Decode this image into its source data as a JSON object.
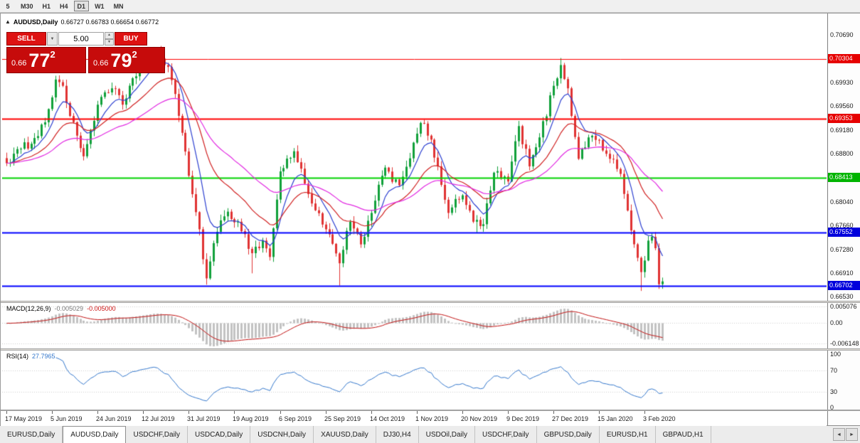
{
  "toolbar": {
    "timeframes": [
      {
        "label": "5",
        "active": false
      },
      {
        "label": "M30",
        "active": false
      },
      {
        "label": "H1",
        "active": false
      },
      {
        "label": "H4",
        "active": false
      },
      {
        "label": "D1",
        "active": true
      },
      {
        "label": "W1",
        "active": false
      },
      {
        "label": "MN",
        "active": false
      }
    ]
  },
  "chart_window": {
    "panel_toggle_icon": "▲",
    "symbol_title": "AUDUSD,Daily",
    "ohlc": "0.66727 0.66783 0.66654 0.66772",
    "trade_panel": {
      "sell_label": "SELL",
      "buy_label": "BUY",
      "lot_value": "5.00",
      "dropdown_icon": "▼",
      "spinner_up_icon": "▲",
      "spinner_down_icon": "▼",
      "bid": {
        "prefix": "0.66",
        "big": "77",
        "sup": "2"
      },
      "ask": {
        "prefix": "0.66",
        "big": "79",
        "sup": "2"
      }
    },
    "price_axis": {
      "labels": [
        {
          "text": "0.70690",
          "value": 0.7069
        },
        {
          "text": "0.69930",
          "value": 0.6993
        },
        {
          "text": "0.69560",
          "value": 0.6956
        },
        {
          "text": "0.69180",
          "value": 0.6918
        },
        {
          "text": "0.68800",
          "value": 0.688
        },
        {
          "text": "0.68410",
          "value": 0.6841
        },
        {
          "text": "0.68040",
          "value": 0.6804
        },
        {
          "text": "0.67660",
          "value": 0.6766
        },
        {
          "text": "0.67280",
          "value": 0.6728
        },
        {
          "text": "0.66910",
          "value": 0.6691
        },
        {
          "text": "0.66530",
          "value": 0.6653
        }
      ],
      "tags": [
        {
          "text": "0.70304",
          "price": 0.70304,
          "bg": "#e60000"
        },
        {
          "text": "0.69353",
          "price": 0.69353,
          "bg": "#e60000"
        },
        {
          "text": "0.68413",
          "price": 0.68413,
          "bg": "#00b400"
        },
        {
          "text": "0.67552",
          "price": 0.67552,
          "bg": "#0000dc"
        },
        {
          "text": "0.66702",
          "price": 0.66702,
          "bg": "#0000dc"
        }
      ]
    },
    "macd_panel": {
      "label": "MACD(12,26,9)",
      "value_main": "-0.005029",
      "value_signal": "-0.005000",
      "axis": [
        {
          "text": "0.005076",
          "value": 0.005076
        },
        {
          "text": "0.00",
          "value": 0
        },
        {
          "text": "-0.006148",
          "value": -0.006148
        }
      ]
    },
    "rsi_panel": {
      "label": "RSI(14)",
      "value": "27.7965",
      "axis": [
        {
          "text": "100",
          "value": 100
        },
        {
          "text": "70",
          "value": 70
        },
        {
          "text": "30",
          "value": 30
        },
        {
          "text": "0",
          "value": 0
        }
      ]
    }
  },
  "tabbar": {
    "scroll_left_icon": "◄",
    "scroll_right_icon": "►",
    "tabs": [
      {
        "label": "EURUSD,Daily",
        "active": false
      },
      {
        "label": "AUDUSD,Daily",
        "active": true
      },
      {
        "label": "USDCHF,Daily",
        "active": false
      },
      {
        "label": "USDCAD,Daily",
        "active": false
      },
      {
        "label": "USDCNH,Daily",
        "active": false
      },
      {
        "label": "XAUUSD,Daily",
        "active": false
      },
      {
        "label": "DJ30,H4",
        "active": false
      },
      {
        "label": "USDOil,Daily",
        "active": false
      },
      {
        "label": "USDCHF,Daily",
        "active": false
      },
      {
        "label": "GBPUSD,Daily",
        "active": false
      },
      {
        "label": "EURUSD,H1",
        "active": false
      },
      {
        "label": "GBPAUD,H1",
        "active": false
      }
    ]
  },
  "chart_data": {
    "type": "candlestick",
    "symbol": "AUDUSD",
    "timeframe": "Daily",
    "title": "AUDUSD,Daily",
    "ohlc_current": {
      "open": 0.66727,
      "high": 0.66783,
      "low": 0.66654,
      "close": 0.66772
    },
    "bid": 0.66772,
    "ask": 0.66792,
    "ylim": [
      0.6645,
      0.71
    ],
    "y_axis_ticks": [
      0.7069,
      0.6993,
      0.6956,
      0.6918,
      0.688,
      0.6841,
      0.6804,
      0.6766,
      0.6728,
      0.6691,
      0.6653
    ],
    "horizontal_lines": [
      {
        "price": 0.70304,
        "color": "#ff0000",
        "width": 1
      },
      {
        "price": 0.69353,
        "color": "#ff0000",
        "width": 2
      },
      {
        "price": 0.68413,
        "color": "#00d200",
        "width": 2
      },
      {
        "price": 0.67552,
        "color": "#0000ff",
        "width": 2
      },
      {
        "price": 0.66702,
        "color": "#0000ff",
        "width": 2
      }
    ],
    "candle_count": 188,
    "price_path_anchors": [
      [
        0,
        0.6865
      ],
      [
        4,
        0.6888
      ],
      [
        8,
        0.6905
      ],
      [
        11,
        0.693
      ],
      [
        14,
        0.6998
      ],
      [
        16,
        0.6988
      ],
      [
        18,
        0.694
      ],
      [
        22,
        0.6876
      ],
      [
        26,
        0.6958
      ],
      [
        30,
        0.6984
      ],
      [
        33,
        0.6958
      ],
      [
        36,
        0.7
      ],
      [
        40,
        0.7028
      ],
      [
        43,
        0.7042
      ],
      [
        46,
        0.7018
      ],
      [
        48,
        0.6975
      ],
      [
        52,
        0.6845
      ],
      [
        55,
        0.676
      ],
      [
        57,
        0.6682
      ],
      [
        60,
        0.6756
      ],
      [
        63,
        0.6788
      ],
      [
        66,
        0.6772
      ],
      [
        70,
        0.6722
      ],
      [
        73,
        0.6742
      ],
      [
        75,
        0.6716
      ],
      [
        78,
        0.6852
      ],
      [
        82,
        0.6884
      ],
      [
        86,
        0.6816
      ],
      [
        91,
        0.676
      ],
      [
        95,
        0.6706
      ],
      [
        98,
        0.6772
      ],
      [
        101,
        0.6736
      ],
      [
        104,
        0.6786
      ],
      [
        108,
        0.6858
      ],
      [
        112,
        0.683
      ],
      [
        117,
        0.6912
      ],
      [
        119,
        0.6928
      ],
      [
        123,
        0.686
      ],
      [
        126,
        0.6786
      ],
      [
        130,
        0.6814
      ],
      [
        133,
        0.6772
      ],
      [
        136,
        0.6768
      ],
      [
        139,
        0.685
      ],
      [
        143,
        0.6836
      ],
      [
        146,
        0.6924
      ],
      [
        149,
        0.686
      ],
      [
        152,
        0.6906
      ],
      [
        156,
        0.6988
      ],
      [
        158,
        0.7021
      ],
      [
        160,
        0.6984
      ],
      [
        163,
        0.6872
      ],
      [
        166,
        0.6906
      ],
      [
        169,
        0.6902
      ],
      [
        172,
        0.6872
      ],
      [
        175,
        0.6848
      ],
      [
        178,
        0.6758
      ],
      [
        181,
        0.6692
      ],
      [
        183,
        0.6742
      ],
      [
        184,
        0.6748
      ],
      [
        185,
        0.673
      ],
      [
        186,
        0.66727
      ],
      [
        187,
        0.66772
      ]
    ],
    "wick_extremes": {
      "highs": [
        [
          14,
          0.7004
        ],
        [
          43,
          0.7048
        ],
        [
          119,
          0.6932
        ],
        [
          158,
          0.70322
        ],
        [
          187,
          0.66783
        ]
      ],
      "lows": [
        [
          57,
          0.6677
        ],
        [
          70,
          0.669
        ],
        [
          95,
          0.66705
        ],
        [
          134,
          0.6754
        ],
        [
          181,
          0.6662
        ],
        [
          186,
          0.6666
        ],
        [
          187,
          0.66654
        ]
      ]
    },
    "moving_averages": [
      {
        "type": "ema",
        "period": 8,
        "color": "#2c3fd0"
      },
      {
        "type": "ema",
        "period": 21,
        "color": "#d02020"
      },
      {
        "type": "ema",
        "period": 45,
        "color": "#e129e1"
      }
    ],
    "indicators": {
      "macd": {
        "fast": 12,
        "slow": 26,
        "signal": 9,
        "current": -0.005029,
        "current_signal": -0.005,
        "ylim": [
          -0.0076,
          0.0061
        ],
        "histogram_color": "#c2c2c2",
        "signal_color": "#c11111"
      },
      "rsi": {
        "period": 14,
        "current": 27.7965,
        "levels": [
          100,
          70,
          30,
          0
        ],
        "line_color": "#3377cc"
      }
    },
    "colors": {
      "candle_up": "#10a03a",
      "candle_down": "#e03232",
      "background": "#ffffff"
    },
    "x_tick_dates": [
      {
        "label": "17 May 2019",
        "index": 0
      },
      {
        "label": "5 Jun 2019",
        "index": 13
      },
      {
        "label": "24 Jun 2019",
        "index": 26
      },
      {
        "label": "12 Jul 2019",
        "index": 39
      },
      {
        "label": "31 Jul 2019",
        "index": 52
      },
      {
        "label": "19 Aug 2019",
        "index": 65
      },
      {
        "label": "6 Sep 2019",
        "index": 78
      },
      {
        "label": "25 Sep 2019",
        "index": 91
      },
      {
        "label": "14 Oct 2019",
        "index": 104
      },
      {
        "label": "1 Nov 2019",
        "index": 117
      },
      {
        "label": "20 Nov 2019",
        "index": 130
      },
      {
        "label": "9 Dec 2019",
        "index": 143
      },
      {
        "label": "27 Dec 2019",
        "index": 156
      },
      {
        "label": "15 Jan 2020",
        "index": 169
      },
      {
        "label": "3 Feb 2020",
        "index": 182
      }
    ],
    "grid": false,
    "legend_position": "none"
  }
}
